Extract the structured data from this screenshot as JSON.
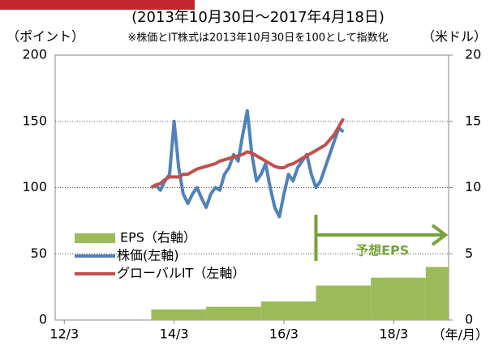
{
  "chart_data": {
    "type": "line",
    "subtitle": "(2013年10月30日～2017年4月18日)",
    "note": "※株価とIT株式は2013年10月30日を100として指数化",
    "y_label": "（ポイント）",
    "y2_label": "（米ドル）",
    "x_label": "（年/月）",
    "xlim": [
      "12/1",
      "19/3"
    ],
    "xticks": [
      "12/3",
      "14/3",
      "16/3",
      "18/3"
    ],
    "ylim": [
      0,
      200
    ],
    "yticks": [
      0,
      50,
      100,
      150,
      200
    ],
    "y2lim": [
      0,
      20
    ],
    "y2ticks": [
      0,
      5,
      10,
      15,
      20
    ],
    "grid": true,
    "legend": "lower left",
    "x": [
      "13/10",
      "13/11",
      "13/12",
      "14/1",
      "14/2",
      "14/3",
      "14/4",
      "14/5",
      "14/6",
      "14/7",
      "14/8",
      "14/9",
      "14/10",
      "14/11",
      "14/12",
      "15/1",
      "15/2",
      "15/3",
      "15/4",
      "15/5",
      "15/6",
      "15/7",
      "15/8",
      "15/9",
      "15/10",
      "15/11",
      "15/12",
      "16/1",
      "16/2",
      "16/3",
      "16/4",
      "16/5",
      "16/6",
      "16/7",
      "16/8",
      "16/9",
      "16/10",
      "16/11",
      "16/12",
      "17/1",
      "17/2",
      "17/3",
      "17/4"
    ],
    "bars": {
      "name": "EPS（右軸）",
      "color": "#9bbb59",
      "axis": "y2",
      "bins": [
        "13/10",
        "14/10",
        "15/10",
        "16/10",
        "17/10",
        "18/10",
        "19/3"
      ],
      "values": [
        0.8,
        1.0,
        1.4,
        2.6,
        3.2,
        4.0
      ]
    },
    "series": [
      {
        "name": "株価(左軸)",
        "color": "#4f81bd",
        "values": [
          100,
          102,
          98,
          105,
          110,
          150,
          115,
          95,
          88,
          95,
          100,
          92,
          85,
          95,
          100,
          98,
          110,
          115,
          125,
          120,
          140,
          158,
          125,
          105,
          110,
          118,
          100,
          85,
          78,
          95,
          110,
          105,
          115,
          120,
          125,
          110,
          100,
          105,
          115,
          125,
          135,
          145,
          142
        ]
      },
      {
        "name": "グローバルIT（左軸）",
        "color": "#c0504d",
        "values": [
          100,
          102,
          103,
          106,
          108,
          108,
          108,
          110,
          110,
          112,
          114,
          115,
          116,
          117,
          118,
          120,
          121,
          122,
          123,
          124,
          125,
          127,
          126,
          124,
          122,
          120,
          118,
          116,
          115,
          115,
          117,
          118,
          120,
          122,
          124,
          126,
          128,
          130,
          132,
          136,
          140,
          146,
          152
        ]
      }
    ],
    "annotation": {
      "text": "予想EPS",
      "from": "16/10",
      "color": "#77a33a"
    }
  }
}
